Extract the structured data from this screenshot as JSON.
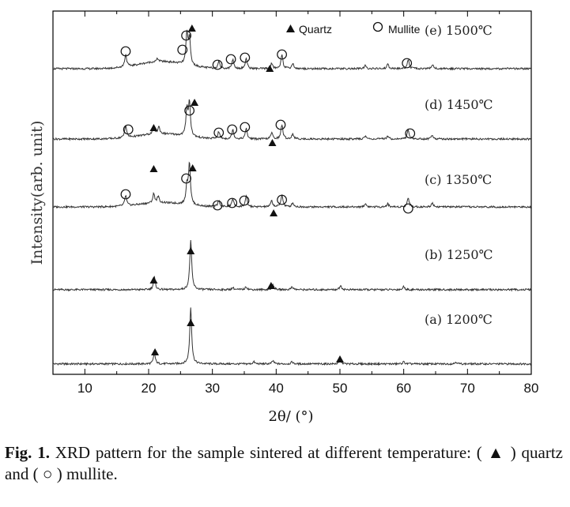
{
  "chart_data": {
    "type": "line",
    "xlabel": "2θ/ (°)",
    "ylabel": "Intensity(arb. unit)",
    "xlim": [
      5,
      80
    ],
    "x_ticks": [
      "10",
      "20",
      "30",
      "40",
      "50",
      "60",
      "70",
      "80"
    ],
    "y_ticks_shown": false,
    "legend": {
      "position": "top",
      "entries": [
        {
          "symbol": "filled-triangle",
          "label": "Quartz"
        },
        {
          "symbol": "open-circle",
          "label": "Mullite"
        }
      ]
    },
    "series": [
      {
        "name": "(a) 1200℃",
        "baseline": 0.04,
        "peaks": [
          {
            "x": 20.9,
            "h": 0.1
          },
          {
            "x": 26.6,
            "h": 0.55
          },
          {
            "x": 36.5,
            "h": 0.02
          },
          {
            "x": 39.5,
            "h": 0.03
          },
          {
            "x": 42.5,
            "h": 0.02
          },
          {
            "x": 50.1,
            "h": 0.04
          },
          {
            "x": 60.0,
            "h": 0.02
          },
          {
            "x": 68.2,
            "h": 0.02
          }
        ],
        "markers": [
          {
            "x": 21.0,
            "type": "quartz"
          },
          {
            "x": 26.6,
            "type": "quartz"
          },
          {
            "x": 50.0,
            "type": "quartz"
          }
        ]
      },
      {
        "name": "(b) 1250℃",
        "baseline": 0.04,
        "peaks": [
          {
            "x": 20.9,
            "h": 0.12
          },
          {
            "x": 26.6,
            "h": 0.48
          },
          {
            "x": 33.2,
            "h": 0.02
          },
          {
            "x": 35.3,
            "h": 0.03
          },
          {
            "x": 39.5,
            "h": 0.05
          },
          {
            "x": 42.5,
            "h": 0.03
          },
          {
            "x": 50.1,
            "h": 0.04
          },
          {
            "x": 60.0,
            "h": 0.03
          }
        ],
        "markers": [
          {
            "x": 20.8,
            "type": "quartz"
          },
          {
            "x": 26.6,
            "type": "quartz"
          },
          {
            "x": 39.2,
            "type": "quartz"
          }
        ]
      },
      {
        "name": "(c) 1350℃",
        "baseline": 0.1,
        "hump": 0.04,
        "peaks": [
          {
            "x": 16.4,
            "h": 0.1
          },
          {
            "x": 20.8,
            "h": 0.09
          },
          {
            "x": 21.5,
            "h": 0.06
          },
          {
            "x": 26.0,
            "h": 0.18
          },
          {
            "x": 26.4,
            "h": 0.4
          },
          {
            "x": 31.0,
            "h": 0.06
          },
          {
            "x": 33.2,
            "h": 0.08
          },
          {
            "x": 35.3,
            "h": 0.1
          },
          {
            "x": 39.3,
            "h": 0.06
          },
          {
            "x": 40.9,
            "h": 0.12
          },
          {
            "x": 42.6,
            "h": 0.04
          },
          {
            "x": 54.0,
            "h": 0.03
          },
          {
            "x": 57.5,
            "h": 0.03
          },
          {
            "x": 60.7,
            "h": 0.09
          },
          {
            "x": 64.5,
            "h": 0.04
          }
        ],
        "markers": [
          {
            "x": 16.4,
            "type": "mullite"
          },
          {
            "x": 20.8,
            "type": "quartz"
          },
          {
            "x": 25.9,
            "type": "mullite"
          },
          {
            "x": 26.9,
            "type": "quartz"
          },
          {
            "x": 30.8,
            "type": "mullite"
          },
          {
            "x": 33.1,
            "type": "mullite"
          },
          {
            "x": 35.0,
            "type": "mullite"
          },
          {
            "x": 39.6,
            "type": "quartz"
          },
          {
            "x": 40.9,
            "type": "mullite"
          },
          {
            "x": 60.7,
            "type": "mullite"
          }
        ]
      },
      {
        "name": "(d) 1450℃",
        "baseline": 0.1,
        "hump": 0.05,
        "peaks": [
          {
            "x": 16.4,
            "h": 0.12
          },
          {
            "x": 20.8,
            "h": 0.07
          },
          {
            "x": 21.6,
            "h": 0.07
          },
          {
            "x": 26.0,
            "h": 0.26
          },
          {
            "x": 26.4,
            "h": 0.32
          },
          {
            "x": 31.0,
            "h": 0.07
          },
          {
            "x": 33.2,
            "h": 0.09
          },
          {
            "x": 35.3,
            "h": 0.1
          },
          {
            "x": 39.3,
            "h": 0.06
          },
          {
            "x": 40.9,
            "h": 0.14
          },
          {
            "x": 42.6,
            "h": 0.05
          },
          {
            "x": 54.0,
            "h": 0.03
          },
          {
            "x": 57.5,
            "h": 0.03
          },
          {
            "x": 60.7,
            "h": 0.09
          },
          {
            "x": 64.5,
            "h": 0.04
          }
        ],
        "markers": [
          {
            "x": 16.8,
            "type": "mullite"
          },
          {
            "x": 20.8,
            "type": "quartz"
          },
          {
            "x": 26.4,
            "type": "mullite"
          },
          {
            "x": 27.2,
            "type": "quartz"
          },
          {
            "x": 31.0,
            "type": "mullite"
          },
          {
            "x": 33.1,
            "type": "mullite"
          },
          {
            "x": 35.1,
            "type": "mullite"
          },
          {
            "x": 39.4,
            "type": "quartz"
          },
          {
            "x": 40.7,
            "type": "mullite"
          },
          {
            "x": 61.0,
            "type": "mullite"
          }
        ]
      },
      {
        "name": "(e) 1500℃",
        "baseline": 0.1,
        "hump": 0.07,
        "peaks": [
          {
            "x": 16.4,
            "h": 0.12
          },
          {
            "x": 21.4,
            "h": 0.03
          },
          {
            "x": 26.0,
            "h": 0.3
          },
          {
            "x": 26.4,
            "h": 0.26
          },
          {
            "x": 31.0,
            "h": 0.07
          },
          {
            "x": 33.2,
            "h": 0.09
          },
          {
            "x": 35.3,
            "h": 0.1
          },
          {
            "x": 39.3,
            "h": 0.05
          },
          {
            "x": 40.9,
            "h": 0.14
          },
          {
            "x": 42.6,
            "h": 0.05
          },
          {
            "x": 54.0,
            "h": 0.03
          },
          {
            "x": 57.5,
            "h": 0.04
          },
          {
            "x": 60.7,
            "h": 0.09
          },
          {
            "x": 64.5,
            "h": 0.04
          }
        ],
        "markers": [
          {
            "x": 16.4,
            "type": "mullite"
          },
          {
            "x": 25.3,
            "type": "mullite"
          },
          {
            "x": 25.9,
            "type": "mullite"
          },
          {
            "x": 26.8,
            "type": "quartz"
          },
          {
            "x": 30.8,
            "type": "mullite"
          },
          {
            "x": 32.9,
            "type": "mullite"
          },
          {
            "x": 35.1,
            "type": "mullite"
          },
          {
            "x": 39.0,
            "type": "quartz"
          },
          {
            "x": 40.9,
            "type": "mullite"
          },
          {
            "x": 60.5,
            "type": "mullite"
          }
        ]
      }
    ]
  },
  "caption": {
    "label": "Fig. 1.",
    "text_1": " XRD pattern for the sample sintered at different temperature: ( ",
    "quartz_symbol": "▲",
    "text_2": " ) quartz and ( ",
    "mullite_symbol": "○",
    "text_3": " ) mullite."
  },
  "colors": {
    "line": "#333333",
    "marker": "#111111",
    "axis": "#000000"
  }
}
